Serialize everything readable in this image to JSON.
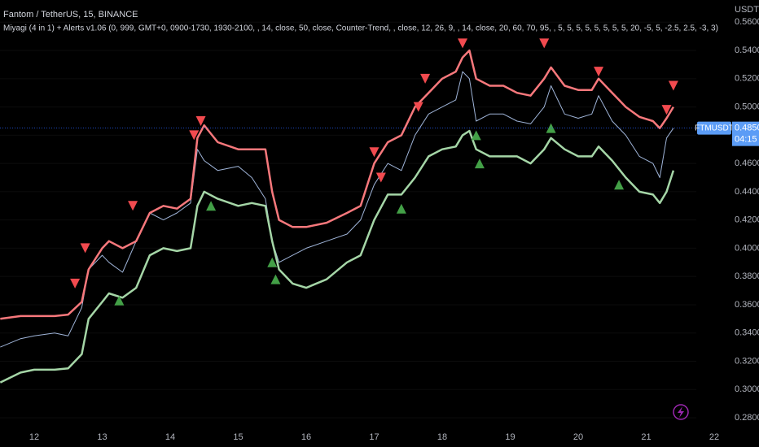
{
  "chart_data": {
    "type": "line",
    "title": "Fantom / TetherUS, 15, BINANCE",
    "subtitle": "Miyagi (4 in 1) + Alerts v1.06 (0, 999, GMT+0, 0900-1730, 1930-2100, , 14, close, 50, close, Counter-Trend, , close, 12, 26, 9, , 14, close, 20, 60, 70, 95, , 5, 5, 5, 5, 5, 5, 5, 5, 20, -5, 5, -2.5, 2.5, -3, 3)",
    "y_unit": "USDT",
    "x": [
      11.5,
      11.8,
      12.0,
      12.3,
      12.5,
      12.7,
      12.8,
      13.0,
      13.1,
      13.3,
      13.5,
      13.7,
      13.9,
      14.1,
      14.3,
      14.4,
      14.5,
      14.7,
      15.0,
      15.2,
      15.4,
      15.5,
      15.6,
      15.8,
      16.0,
      16.3,
      16.6,
      16.8,
      17.0,
      17.2,
      17.4,
      17.6,
      17.8,
      18.0,
      18.2,
      18.3,
      18.4,
      18.5,
      18.7,
      18.9,
      19.1,
      19.3,
      19.5,
      19.6,
      19.8,
      20.0,
      20.2,
      20.3,
      20.5,
      20.7,
      20.9,
      21.1,
      21.2,
      21.3,
      21.4
    ],
    "xlim": [
      11.497,
      21.737
    ],
    "xticks": [
      12,
      13,
      14,
      15,
      16,
      17,
      18,
      19,
      20,
      21,
      22
    ],
    "ylim": [
      0.2708,
      0.5757
    ],
    "yticks": [
      {
        "value": 0.28,
        "label": "0.2800"
      },
      {
        "value": 0.3,
        "label": "0.3000"
      },
      {
        "value": 0.32,
        "label": "0.3200"
      },
      {
        "value": 0.34,
        "label": "0.3400"
      },
      {
        "value": 0.36,
        "label": "0.3600"
      },
      {
        "value": 0.38,
        "label": "0.3800"
      },
      {
        "value": 0.4,
        "label": "0.4000"
      },
      {
        "value": 0.42,
        "label": "0.4200"
      },
      {
        "value": 0.44,
        "label": "0.4400"
      },
      {
        "value": 0.46,
        "label": "0.4600"
      },
      {
        "value": 0.48,
        "label": "0.4800"
      },
      {
        "value": 0.5,
        "label": "0.5000"
      },
      {
        "value": 0.52,
        "label": "0.5200"
      },
      {
        "value": 0.54,
        "label": "0.5400"
      },
      {
        "value": 0.56,
        "label": "0.5600"
      }
    ],
    "series": [
      {
        "color": "#9fb4d8",
        "values": [
          0.33,
          0.336,
          0.338,
          0.34,
          0.338,
          0.358,
          0.385,
          0.395,
          0.39,
          0.383,
          0.405,
          0.425,
          0.42,
          0.425,
          0.432,
          0.47,
          0.462,
          0.455,
          0.458,
          0.45,
          0.435,
          0.405,
          0.39,
          0.395,
          0.4,
          0.405,
          0.41,
          0.42,
          0.445,
          0.46,
          0.455,
          0.48,
          0.495,
          0.5,
          0.505,
          0.525,
          0.52,
          0.49,
          0.495,
          0.495,
          0.49,
          0.488,
          0.5,
          0.515,
          0.495,
          0.492,
          0.495,
          0.508,
          0.49,
          0.48,
          0.465,
          0.46,
          0.45,
          0.478,
          0.485
        ]
      },
      {
        "color": "#f7787c",
        "values": [
          0.35,
          0.352,
          0.352,
          0.352,
          0.353,
          0.362,
          0.385,
          0.4,
          0.405,
          0.4,
          0.405,
          0.425,
          0.43,
          0.428,
          0.435,
          0.478,
          0.487,
          0.475,
          0.47,
          0.47,
          0.47,
          0.44,
          0.42,
          0.415,
          0.415,
          0.418,
          0.425,
          0.43,
          0.46,
          0.475,
          0.48,
          0.5,
          0.51,
          0.52,
          0.525,
          0.535,
          0.54,
          0.52,
          0.515,
          0.515,
          0.51,
          0.508,
          0.52,
          0.528,
          0.515,
          0.512,
          0.512,
          0.52,
          0.51,
          0.5,
          0.493,
          0.49,
          0.485,
          0.492,
          0.5
        ]
      },
      {
        "color": "#a5d6a7",
        "values": [
          0.305,
          0.312,
          0.314,
          0.314,
          0.315,
          0.325,
          0.35,
          0.362,
          0.368,
          0.365,
          0.372,
          0.395,
          0.4,
          0.398,
          0.4,
          0.43,
          0.44,
          0.435,
          0.43,
          0.432,
          0.43,
          0.405,
          0.385,
          0.375,
          0.372,
          0.378,
          0.39,
          0.395,
          0.42,
          0.438,
          0.438,
          0.45,
          0.465,
          0.47,
          0.472,
          0.48,
          0.483,
          0.47,
          0.465,
          0.465,
          0.465,
          0.46,
          0.47,
          0.478,
          0.47,
          0.465,
          0.465,
          0.472,
          0.462,
          0.45,
          0.44,
          0.438,
          0.432,
          0.44,
          0.455
        ]
      }
    ],
    "signals": [
      {
        "shape": "down",
        "color": "#f24a4f",
        "x": [
          12.6,
          12.75,
          13.45,
          14.35,
          14.45,
          17.0,
          17.1,
          17.65,
          17.75,
          18.3,
          19.5,
          20.3,
          21.3,
          21.4
        ],
        "values": [
          0.375,
          0.4,
          0.43,
          0.48,
          0.49,
          0.468,
          0.45,
          0.5,
          0.52,
          0.545,
          0.545,
          0.525,
          0.498,
          0.515
        ]
      },
      {
        "shape": "up",
        "color": "#43a047",
        "x": [
          13.25,
          14.6,
          15.5,
          15.55,
          17.4,
          18.5,
          18.55,
          19.6,
          20.6
        ],
        "values": [
          0.363,
          0.43,
          0.39,
          0.378,
          0.428,
          0.48,
          0.46,
          0.485,
          0.445
        ]
      }
    ],
    "last_price": {
      "symbol": "FTMUSDT",
      "price": {
        "value": 0.485,
        "label": "0.4850"
      },
      "countdown": "04:15"
    }
  }
}
